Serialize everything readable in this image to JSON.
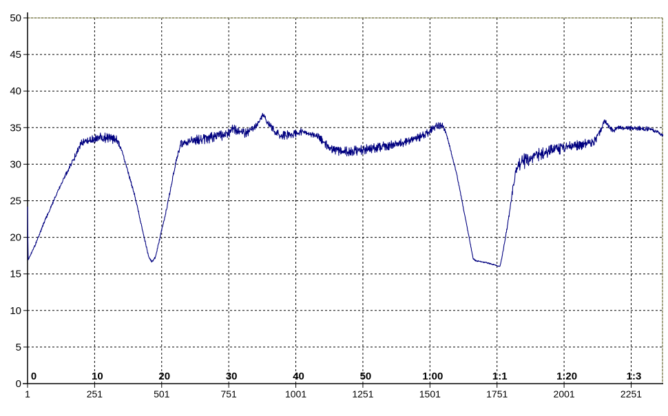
{
  "chart_data": {
    "type": "line",
    "title": "",
    "background": "#ffffff",
    "legend": "none",
    "grid": {
      "style": "dashed",
      "color": "#000000"
    },
    "axis_color": "#000000",
    "border_top_right": {
      "dash_color": "#72723a",
      "base_color": "#b9b9ab"
    },
    "y_axis": {
      "min": 0,
      "max": 50,
      "step": 5,
      "tick_labels": [
        "0",
        "5",
        "10",
        "15",
        "20",
        "25",
        "30",
        "35",
        "40",
        "45",
        "50"
      ]
    },
    "x_axis": {
      "range_samples": [
        1,
        2370
      ],
      "gridline_samples": [
        251,
        501,
        751,
        1001,
        1251,
        1501,
        1751,
        2001,
        2251
      ],
      "sample_tick_labels": [
        {
          "label": "1",
          "sample": 1
        },
        {
          "label": "251",
          "sample": 251
        },
        {
          "label": "501",
          "sample": 501
        },
        {
          "label": "751",
          "sample": 751
        },
        {
          "label": "1001",
          "sample": 1001
        },
        {
          "label": "1251",
          "sample": 1251
        },
        {
          "label": "1501",
          "sample": 1501
        },
        {
          "label": "1751",
          "sample": 1751
        },
        {
          "label": "2001",
          "sample": 2001
        },
        {
          "label": "2251",
          "sample": 2251
        }
      ],
      "time_tick_labels": [
        {
          "label": "0",
          "sample": 1
        },
        {
          "label": "10",
          "sample": 251
        },
        {
          "label": "20",
          "sample": 501
        },
        {
          "label": "30",
          "sample": 751
        },
        {
          "label": "40",
          "sample": 1001
        },
        {
          "label": "50",
          "sample": 1251
        },
        {
          "label": "1:00",
          "sample": 1501
        },
        {
          "label": "1:1",
          "sample": 1751
        },
        {
          "label": "1:20",
          "sample": 2001
        },
        {
          "label": "1:3",
          "sample": 2251
        }
      ]
    },
    "series": [
      {
        "name": "signal",
        "color": "#00007f",
        "noise_seed": 20240607,
        "keypoints_sample_value_noise": [
          [
            1,
            24.2,
            0
          ],
          [
            3,
            16.9,
            0.05
          ],
          [
            30,
            19.0,
            0.12
          ],
          [
            60,
            21.8,
            0.15
          ],
          [
            120,
            26.8,
            0.15
          ],
          [
            165,
            30.2,
            0.25
          ],
          [
            205,
            32.9,
            0.55
          ],
          [
            240,
            33.4,
            0.6
          ],
          [
            300,
            33.6,
            0.6
          ],
          [
            332,
            33.4,
            0.45
          ],
          [
            352,
            32.0,
            0.2
          ],
          [
            400,
            25.8,
            0.15
          ],
          [
            452,
            17.4,
            0.1
          ],
          [
            464,
            16.65,
            0.08
          ],
          [
            478,
            17.3,
            0.1
          ],
          [
            520,
            24.0,
            0.15
          ],
          [
            556,
            30.6,
            0.25
          ],
          [
            572,
            32.8,
            0.45
          ],
          [
            640,
            33.4,
            0.55
          ],
          [
            700,
            33.7,
            0.55
          ],
          [
            748,
            34.1,
            0.5
          ],
          [
            768,
            34.9,
            0.45
          ],
          [
            788,
            34.4,
            0.45
          ],
          [
            812,
            34.2,
            0.45
          ],
          [
            842,
            34.8,
            0.4
          ],
          [
            862,
            35.7,
            0.35
          ],
          [
            878,
            36.7,
            0.3
          ],
          [
            898,
            35.6,
            0.3
          ],
          [
            922,
            34.5,
            0.4
          ],
          [
            948,
            33.9,
            0.45
          ],
          [
            985,
            34.1,
            0.45
          ],
          [
            1020,
            34.4,
            0.4
          ],
          [
            1060,
            34.2,
            0.4
          ],
          [
            1092,
            33.5,
            0.4
          ],
          [
            1130,
            32.1,
            0.45
          ],
          [
            1175,
            31.7,
            0.5
          ],
          [
            1240,
            31.9,
            0.5
          ],
          [
            1310,
            32.3,
            0.5
          ],
          [
            1380,
            32.8,
            0.5
          ],
          [
            1445,
            33.4,
            0.45
          ],
          [
            1495,
            34.3,
            0.4
          ],
          [
            1522,
            35.2,
            0.35
          ],
          [
            1548,
            35.3,
            0.3
          ],
          [
            1562,
            34.2,
            0.12
          ],
          [
            1600,
            28.8,
            0.12
          ],
          [
            1640,
            21.3,
            0.12
          ],
          [
            1662,
            17.1,
            0.08
          ],
          [
            1672,
            16.8,
            0.06
          ],
          [
            1705,
            16.6,
            0.06
          ],
          [
            1745,
            16.2,
            0.06
          ],
          [
            1762,
            16.0,
            0.06
          ],
          [
            1772,
            17.8,
            0.12
          ],
          [
            1792,
            22.0,
            0.2
          ],
          [
            1812,
            27.2,
            0.4
          ],
          [
            1824,
            29.7,
            0.7
          ],
          [
            1845,
            30.3,
            0.85
          ],
          [
            1875,
            30.8,
            0.8
          ],
          [
            1905,
            31.3,
            0.7
          ],
          [
            1955,
            31.9,
            0.6
          ],
          [
            2012,
            32.3,
            0.55
          ],
          [
            2070,
            32.7,
            0.5
          ],
          [
            2112,
            33.0,
            0.45
          ],
          [
            2138,
            34.6,
            0.35
          ],
          [
            2152,
            36.0,
            0.25
          ],
          [
            2168,
            35.2,
            0.25
          ],
          [
            2182,
            34.5,
            0.25
          ],
          [
            2200,
            35.0,
            0.22
          ],
          [
            2235,
            34.9,
            0.25
          ],
          [
            2280,
            34.9,
            0.25
          ],
          [
            2325,
            34.8,
            0.22
          ],
          [
            2350,
            34.4,
            0.2
          ],
          [
            2370,
            33.9,
            0.15
          ]
        ]
      }
    ]
  }
}
